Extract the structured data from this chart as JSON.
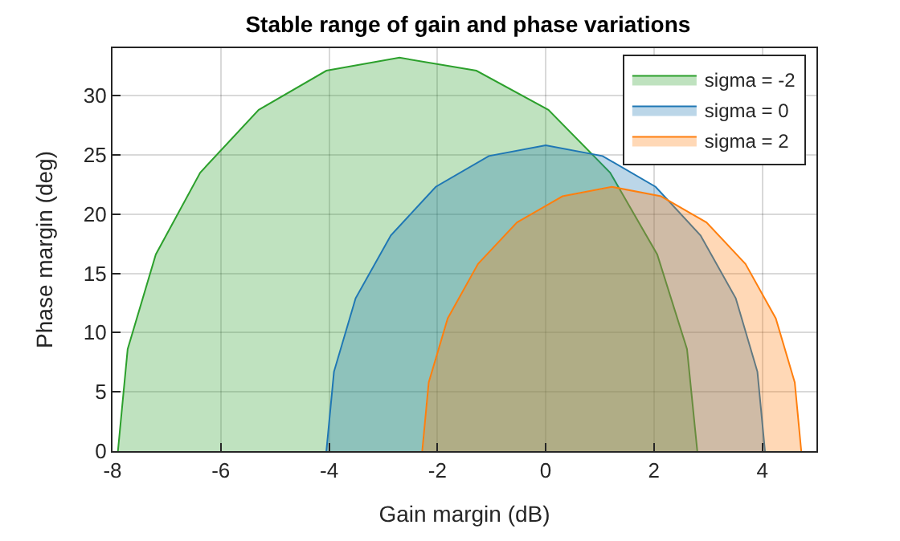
{
  "chart_data": {
    "type": "area",
    "title": "Stable range of gain and phase variations",
    "xlabel": "Gain margin (dB)",
    "ylabel": "Phase margin (deg)",
    "series": [
      {
        "name": "sigma = -2",
        "color": "#2ca02c",
        "x": [
          -7.9,
          -7.72,
          -7.2,
          -6.38,
          -5.3,
          -4.05,
          -2.7,
          -1.28,
          0.05,
          1.19,
          2.06,
          2.61,
          2.8
        ],
        "values": [
          0,
          8.6,
          16.6,
          23.5,
          28.8,
          32.1,
          33.2,
          32.1,
          28.8,
          23.5,
          16.6,
          8.6,
          0
        ]
      },
      {
        "name": "sigma = 0",
        "color": "#1f77b4",
        "x": [
          -4.05,
          -3.91,
          -3.51,
          -2.86,
          -2.03,
          -1.05,
          0,
          1.05,
          2.03,
          2.86,
          3.51,
          3.91,
          4.05
        ],
        "values": [
          0,
          6.7,
          12.9,
          18.2,
          22.3,
          24.9,
          25.8,
          24.9,
          22.3,
          18.2,
          12.9,
          6.7,
          0
        ]
      },
      {
        "name": "sigma = 2",
        "color": "#ff7f0e",
        "x": [
          -2.28,
          -2.16,
          -1.81,
          -1.25,
          -0.53,
          0.31,
          1.22,
          2.13,
          2.97,
          3.69,
          4.25,
          4.6,
          4.72
        ],
        "values": [
          0,
          5.8,
          11.2,
          15.8,
          19.3,
          21.5,
          22.3,
          21.5,
          19.3,
          15.8,
          11.2,
          5.8,
          0
        ]
      }
    ],
    "xlim": [
      -8,
      5
    ],
    "xticks": [
      -8,
      -6,
      -4,
      -2,
      0,
      2,
      4
    ],
    "ylim": [
      0,
      34
    ],
    "yticks": [
      0,
      5,
      10,
      15,
      20,
      25,
      30
    ],
    "grid": true,
    "legend": "top right"
  }
}
